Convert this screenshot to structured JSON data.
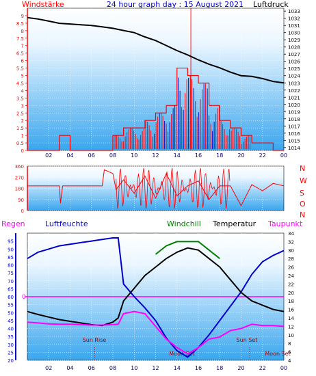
{
  "colors": {
    "red": "#ff0000",
    "blue": "#0000cc",
    "navy": "#000080",
    "black": "#000000",
    "green": "#008000",
    "magenta": "#ff00ff",
    "darkred": "#990000",
    "grid": "#ffffff"
  },
  "chart_data": [
    {
      "type": "line",
      "id": "wind-pressure",
      "title": "24 hour graph day : 15 August 2021",
      "left_label": "Windstärke",
      "right_label": "Luftdruck",
      "ylim_left": [
        0,
        9.5
      ],
      "yticks_left": [
        "0",
        "0.5",
        "1",
        "1.5",
        "2",
        "2.5",
        "3",
        "3.5",
        "4",
        "4.5",
        "5",
        "5.5",
        "6",
        "6.5",
        "7",
        "7.5",
        "8",
        "8.5",
        "9"
      ],
      "ylim_right": [
        1013.6,
        1033.4
      ],
      "yticks_right": [
        "1014",
        "1015",
        "1016",
        "1017",
        "1018",
        "1019",
        "1020",
        "1021",
        "1022",
        "1023",
        "1024",
        "1025",
        "1026",
        "1027",
        "1028",
        "1029",
        "1030",
        "1031",
        "1032",
        "1033"
      ],
      "x_ticks": [
        "02",
        "04",
        "06",
        "08",
        "10",
        "12",
        "14",
        "16",
        "18",
        "20",
        "22",
        "00"
      ],
      "series": [
        {
          "name": "Luftdruck",
          "x": [
            0,
            1,
            2,
            3,
            4,
            5,
            6,
            7,
            8,
            9,
            10,
            11,
            12,
            13,
            14,
            15,
            16,
            17,
            18,
            19,
            20,
            21,
            22,
            23,
            24
          ],
          "values": [
            1032.1,
            1031.9,
            1031.6,
            1031.3,
            1031.2,
            1031.1,
            1031.0,
            1030.8,
            1030.6,
            1030.3,
            1030.0,
            1029.4,
            1028.9,
            1028.2,
            1027.5,
            1026.9,
            1026.2,
            1025.6,
            1025.1,
            1024.5,
            1024.0,
            1023.9,
            1023.6,
            1023.2,
            1023.0
          ]
        },
        {
          "name": "Windstärke",
          "x": [
            0,
            1,
            2,
            3,
            4,
            5,
            6,
            7,
            8,
            9,
            10,
            11,
            12,
            13,
            14,
            15,
            16,
            17,
            18,
            19,
            20,
            21,
            22,
            23,
            24
          ],
          "values": [
            0,
            0,
            0,
            1,
            0,
            0,
            0,
            0,
            1,
            1.5,
            1.5,
            2,
            2.5,
            3,
            5.5,
            5,
            4.5,
            3,
            2,
            1.5,
            1,
            0.5,
            0.5,
            0,
            0
          ]
        }
      ]
    },
    {
      "type": "line",
      "id": "wind-direction",
      "yticks": [
        "0",
        "90",
        "180",
        "270",
        "360"
      ],
      "ylim": [
        0,
        360
      ],
      "right_labels": [
        "N",
        "W",
        "S",
        "O",
        "N"
      ],
      "series": [
        {
          "name": "Windrichtung",
          "x": [
            0,
            3,
            3.1,
            3.3,
            4,
            7,
            7.2,
            8,
            8.3,
            9,
            10,
            11,
            12,
            13,
            14,
            15,
            16,
            17,
            18,
            19,
            20,
            21,
            22,
            23,
            24
          ],
          "values": [
            200,
            200,
            60,
            200,
            200,
            200,
            330,
            300,
            170,
            250,
            140,
            280,
            100,
            300,
            120,
            200,
            240,
            90,
            200,
            200,
            40,
            210,
            160,
            220,
            200
          ]
        }
      ]
    },
    {
      "type": "line",
      "id": "humidity-temperature",
      "labels": {
        "left": "Regen",
        "humidity": "Luftfeuchte",
        "windchill": "Windchill",
        "temperature": "Temperatur",
        "dewpoint": "Taupunkt"
      },
      "ylim_left": [
        20,
        100
      ],
      "yticks_left": [
        "20",
        "25",
        "30",
        "35",
        "40",
        "45",
        "50",
        "55",
        "60",
        "65",
        "70",
        "75",
        "80",
        "85",
        "90",
        "95"
      ],
      "rain_marker": "0",
      "ylim_right": [
        4,
        34
      ],
      "yticks_right": [
        "4",
        "6",
        "8",
        "10",
        "12",
        "14",
        "16",
        "18",
        "20",
        "22",
        "24",
        "26",
        "28",
        "30",
        "32",
        "34"
      ],
      "x_ticks": [
        "02",
        "04",
        "06",
        "08",
        "10",
        "12",
        "14",
        "16",
        "18",
        "20",
        "22",
        "00"
      ],
      "annotations": [
        "Sun Rise",
        "Moon Set",
        "Sun Set",
        "Moon Set"
      ],
      "series": [
        {
          "name": "Luftfeuchte",
          "x": [
            0,
            1,
            2,
            3,
            4,
            5,
            6,
            7,
            8,
            8.5,
            9,
            10,
            11,
            12,
            13,
            14,
            15,
            16,
            17,
            18,
            19,
            20,
            21,
            22,
            23,
            24
          ],
          "values": [
            84,
            88,
            90,
            92,
            93,
            94,
            95,
            96,
            97,
            97,
            68,
            60,
            53,
            45,
            34,
            26,
            22,
            28,
            36,
            45,
            54,
            63,
            74,
            82,
            86,
            89
          ]
        },
        {
          "name": "Temperatur",
          "x": [
            0,
            1,
            2,
            3,
            4,
            5,
            6,
            7,
            8,
            8.5,
            9,
            10,
            11,
            12,
            13,
            14,
            15,
            16,
            17,
            18,
            19,
            20,
            21,
            22,
            23,
            24
          ],
          "values": [
            15.5,
            14.8,
            14.2,
            13.6,
            13.2,
            12.8,
            12.4,
            12.2,
            13,
            14,
            18,
            21,
            24,
            26,
            28,
            29.5,
            30.5,
            30,
            28,
            26,
            23,
            20,
            18,
            17,
            16,
            15.5
          ]
        },
        {
          "name": "Taupunkt",
          "x": [
            0,
            1,
            2,
            3,
            4,
            5,
            6,
            7,
            8,
            8.5,
            9,
            10,
            11,
            12,
            13,
            14,
            15,
            16,
            17,
            18,
            19,
            20,
            21,
            22,
            23,
            24
          ],
          "values": [
            13,
            12.8,
            12.6,
            12.5,
            12.5,
            12.4,
            12.3,
            12.3,
            12.4,
            12.5,
            15,
            15.5,
            15,
            12,
            9,
            7,
            5.5,
            7,
            9,
            9.5,
            11,
            11.5,
            12.5,
            12.2,
            12.2,
            12
          ]
        },
        {
          "name": "Windchill",
          "x": [
            12,
            13,
            14,
            15,
            16,
            17,
            18
          ],
          "values": [
            29,
            31,
            32,
            32,
            32,
            30,
            28
          ]
        }
      ]
    }
  ]
}
